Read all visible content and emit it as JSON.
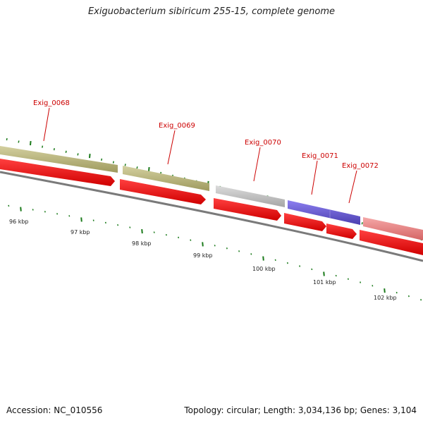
{
  "title": "Exiguobacterium sibiricum 255-15, complete genome",
  "accession": "Accession: NC_010556",
  "summary": "Topology: circular; Length: 3,034,136 bp; Genes: 3,104",
  "genes": [
    {
      "label": "Exig_0068",
      "color": "#b5b173"
    },
    {
      "label": "Exig_0069",
      "color": "#b5b173"
    },
    {
      "label": "Exig_0070",
      "color": "#bdbdbd"
    },
    {
      "label": "Exig_0071",
      "color": "#6a5acd"
    },
    {
      "label": "Exig_0072",
      "color": "#f08080"
    }
  ],
  "kbp_labels": [
    "96 kbp",
    "97 kbp",
    "98 kbp",
    "99 kbp",
    "100 kbp",
    "101 kbp",
    "102 kbp"
  ],
  "colors": {
    "cds_strand": "#ff0000",
    "backbone": "#808080",
    "tick": "#1a7a1a",
    "label": "#cc0000"
  }
}
